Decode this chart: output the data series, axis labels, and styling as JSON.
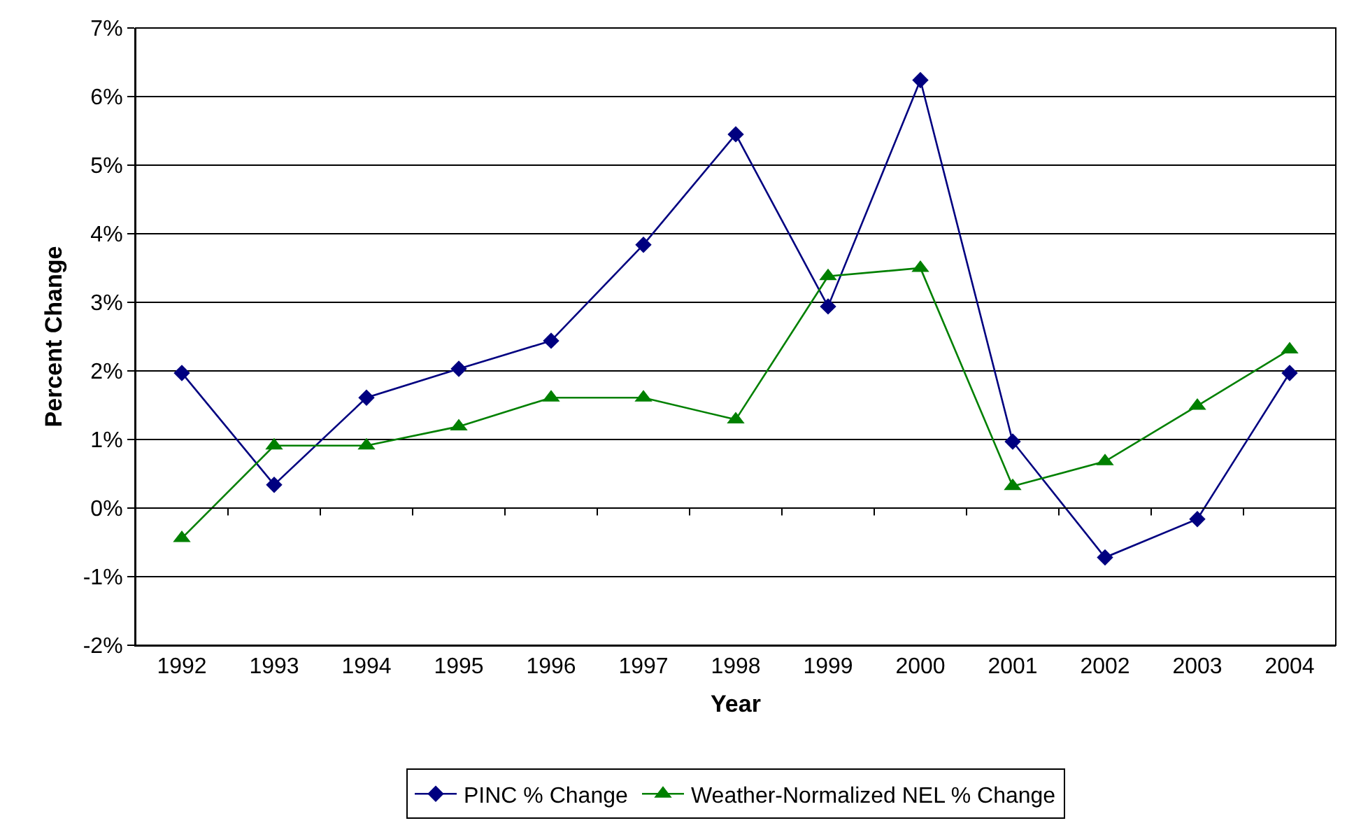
{
  "chart_data": {
    "type": "line",
    "xlabel": "Year",
    "ylabel": "Percent Change",
    "categories": [
      "1992",
      "1993",
      "1994",
      "1995",
      "1996",
      "1997",
      "1998",
      "1999",
      "2000",
      "2001",
      "2002",
      "2003",
      "2004"
    ],
    "series": [
      {
        "name": "PINC % Change",
        "color": "#000080",
        "marker": "diamond",
        "values": [
          1.97,
          0.34,
          1.61,
          2.03,
          2.44,
          3.84,
          5.45,
          2.94,
          6.24,
          0.97,
          -0.72,
          -0.16,
          1.97
        ]
      },
      {
        "name": "Weather-Normalized NEL % Change",
        "color": "#008000",
        "marker": "triangle",
        "values": [
          -0.44,
          0.91,
          0.91,
          1.19,
          1.61,
          1.61,
          1.29,
          3.38,
          3.5,
          0.32,
          0.68,
          1.49,
          2.31
        ]
      }
    ],
    "ylim": [
      -2,
      7
    ],
    "yticks": [
      {
        "value": -2,
        "label": "-2%"
      },
      {
        "value": -1,
        "label": "-1%"
      },
      {
        "value": 0,
        "label": "0%"
      },
      {
        "value": 1,
        "label": "1%"
      },
      {
        "value": 2,
        "label": "2%"
      },
      {
        "value": 3,
        "label": "3%"
      },
      {
        "value": 4,
        "label": "4%"
      },
      {
        "value": 5,
        "label": "5%"
      },
      {
        "value": 6,
        "label": "6%"
      },
      {
        "value": 7,
        "label": "7%"
      }
    ],
    "grid": "y",
    "legend": "bottom",
    "line_style": "solid"
  }
}
